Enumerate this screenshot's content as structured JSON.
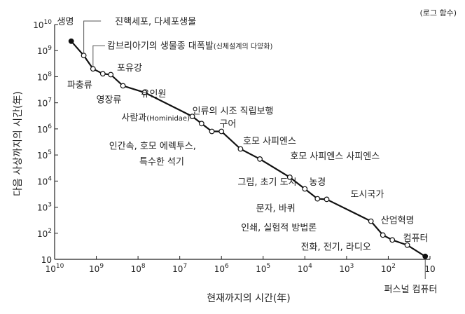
{
  "chart_data": {
    "type": "line",
    "title": "",
    "note": "(로그 함수)",
    "xlabel": "현재까지의 시간(年)",
    "ylabel": "다음 사상까지의 시간(年)",
    "x_scale": "log",
    "y_scale": "log",
    "xlim": [
      10000000000.0,
      10
    ],
    "ylim": [
      10,
      10000000000.0
    ],
    "x_ticks": [
      "10^10",
      "10^9",
      "10^8",
      "10^7",
      "10^6",
      "10^5",
      "10^4",
      "10^3",
      "10^2",
      "10"
    ],
    "y_ticks": [
      "10^10",
      "10^9",
      "10^8",
      "10^7",
      "10^6",
      "10^5",
      "10^4",
      "10^3",
      "10^2",
      "10"
    ],
    "series": [
      {
        "points": [
          {
            "x": 4000000000.0,
            "y": 2300000000.0
          },
          {
            "x": 2000000000.0,
            "y": 650000000.0
          },
          {
            "x": 1200000000.0,
            "y": 200000000.0
          },
          {
            "x": 700000000.0,
            "y": 130000000.0
          },
          {
            "x": 450000000.0,
            "y": 120000000.0
          },
          {
            "x": 230000000.0,
            "y": 45000000.0
          },
          {
            "x": 70000000.0,
            "y": 25000000.0
          },
          {
            "x": 5000000.0,
            "y": 3000000.0
          },
          {
            "x": 3000000.0,
            "y": 1600000.0
          },
          {
            "x": 1700000.0,
            "y": 800000.0
          },
          {
            "x": 1000000.0,
            "y": 800000.0
          },
          {
            "x": 350000.0,
            "y": 170000.0
          },
          {
            "x": 120000.0,
            "y": 70000.0
          },
          {
            "x": 23000.0,
            "y": 14000.0
          },
          {
            "x": 10000.0,
            "y": 5000.0
          },
          {
            "x": 5000.0,
            "y": 2100.0
          },
          {
            "x": 3000.0,
            "y": 2000.0
          },
          {
            "x": 260.0,
            "y": 290.0
          },
          {
            "x": 135.0,
            "y": 85.0
          },
          {
            "x": 80.0,
            "y": 55.0
          },
          {
            "x": 35.0,
            "y": 35.0
          },
          {
            "x": 13.0,
            "y": 13.0
          }
        ]
      }
    ],
    "labels": [
      {
        "text": "생명",
        "x": 5500000000.0,
        "y": 10000000000.0,
        "anchor": "middle",
        "leader": false
      },
      {
        "text": "진핵세포, 다세포생물",
        "x": 38000000.0,
        "y": 10000000000.0,
        "anchor": "middle",
        "leader": true
      },
      {
        "text": "캄브리아기의 생물종 대폭발",
        "small": "(신체설계의 다양화)",
        "x": 550000000.0,
        "y": 1200000000.0,
        "anchor": "start",
        "leader": true
      },
      {
        "text": "포유강",
        "x": 160000000.0,
        "y": 170000000.0,
        "anchor": "middle",
        "leader": false
      },
      {
        "text": "파충류",
        "x": 2500000000.0,
        "y": 37000000.0,
        "anchor": "middle",
        "leader": false
      },
      {
        "text": "영장류",
        "x": 500000000.0,
        "y": 10000000.0,
        "anchor": "middle",
        "leader": false
      },
      {
        "text": "유인원",
        "x": 42000000.0,
        "y": 17000000.0,
        "anchor": "middle",
        "leader": false
      },
      {
        "text": "사람과",
        "small": "(Hominidae)",
        "x": 250000000.0,
        "y": 2100000.0,
        "anchor": "start",
        "leader": false
      },
      {
        "text": "인류의 시조 직립보행",
        "x": 5000000.0,
        "y": 3800000.0,
        "anchor": "start",
        "leader": false
      },
      {
        "text": "구어",
        "x": 700000.0,
        "y": 1200000.0,
        "anchor": "middle",
        "leader": false
      },
      {
        "text": "인간속, 호모 에렉투스,",
        "x": 45000000.0,
        "y": 170000.0,
        "anchor": "middle",
        "leader": false
      },
      {
        "text": "특수한 석기",
        "x": 27000000.0,
        "y": 43000.0,
        "anchor": "middle",
        "leader": false
      },
      {
        "text": "호모 사피엔스",
        "x": 70000.0,
        "y": 260000.0,
        "anchor": "middle",
        "leader": false
      },
      {
        "text": "호모 사피엔스 사피엔스",
        "x": 1900.0,
        "y": 70000.0,
        "anchor": "middle",
        "leader": false
      },
      {
        "text": "그림, 초기 도시",
        "x": 80000.0,
        "y": 7000.0,
        "anchor": "middle",
        "leader": false
      },
      {
        "text": "농경",
        "x": 5000.0,
        "y": 7000.0,
        "anchor": "middle",
        "leader": false
      },
      {
        "text": "도시국가",
        "x": 320.0,
        "y": 2400.0,
        "anchor": "middle",
        "leader": false
      },
      {
        "text": "문자, 바퀴",
        "x": 50000.0,
        "y": 700.0,
        "anchor": "middle",
        "leader": false
      },
      {
        "text": "인쇄, 실험적 방법론",
        "x": 42000.0,
        "y": 125.0,
        "anchor": "middle",
        "leader": false
      },
      {
        "text": "산업혁명",
        "x": 60.0,
        "y": 240.0,
        "anchor": "middle",
        "leader": false
      },
      {
        "text": "컴퓨터",
        "x": 22.0,
        "y": 50.0,
        "anchor": "middle",
        "leader": false
      },
      {
        "text": "전화, 전기, 라디오",
        "x": 1800.0,
        "y": 23.0,
        "anchor": "middle",
        "leader": false
      },
      {
        "text": "퍼스널 컴퓨터",
        "x": 29.0,
        "y": 0.55,
        "anchor": "middle",
        "leader": true
      }
    ],
    "grid": false,
    "legend": "none"
  }
}
